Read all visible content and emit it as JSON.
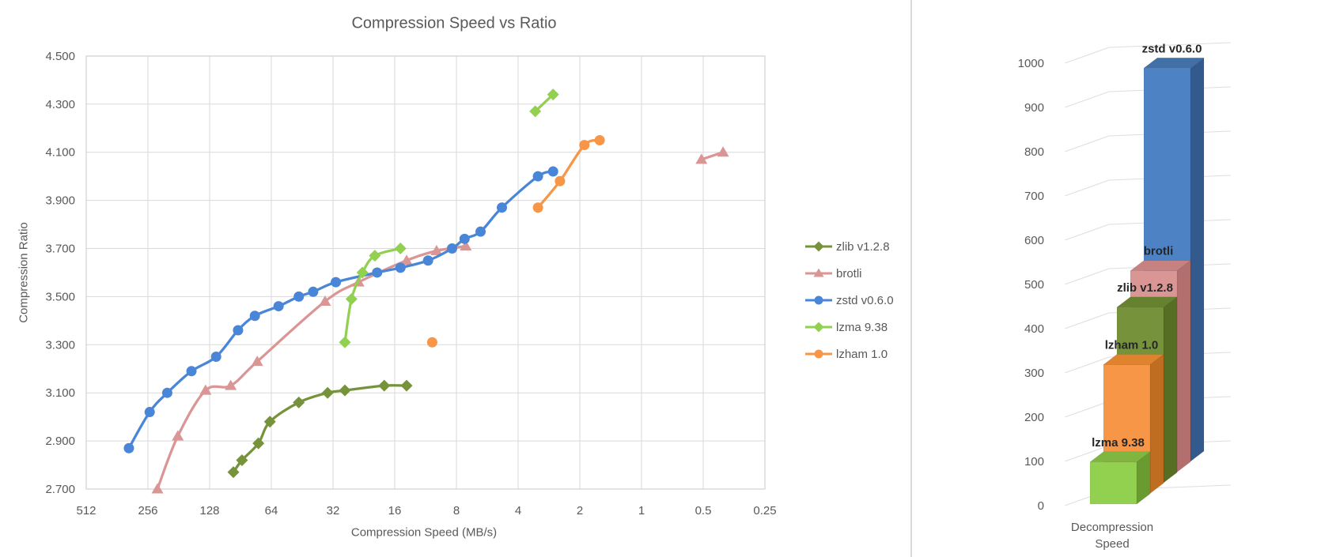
{
  "chart_data": [
    {
      "type": "line",
      "title": "Compression Speed vs Ratio",
      "xlabel": "Compression Speed (MB/s)",
      "ylabel": "Compression Ratio",
      "x_scale": "log2_reversed",
      "x_ticks": [
        512,
        256,
        128,
        64,
        32,
        16,
        8,
        4,
        2,
        1,
        0.5,
        0.25
      ],
      "y_ticks": [
        "2.700",
        "2.900",
        "3.100",
        "3.300",
        "3.500",
        "3.700",
        "3.900",
        "4.100",
        "4.300",
        "4.500"
      ],
      "ylim": [
        2.7,
        4.5
      ],
      "grid": true,
      "legend_position": "right",
      "series": [
        {
          "name": "zlib v1.2.8",
          "color": "#76933c",
          "marker": "diamond",
          "segments": [
            [
              [
                98,
                2.77
              ],
              [
                89,
                2.82
              ],
              [
                74,
                2.89
              ],
              [
                65,
                2.98
              ],
              [
                47,
                3.06
              ],
              [
                34,
                3.1
              ],
              [
                28,
                3.11
              ],
              [
                18,
                3.13
              ],
              [
                14,
                3.13
              ]
            ]
          ]
        },
        {
          "name": "brotli",
          "color": "#d99694",
          "marker": "triangle",
          "segments": [
            [
              [
                230,
                2.7
              ],
              [
                183,
                2.92
              ],
              [
                134,
                3.11
              ],
              [
                101,
                3.13
              ],
              [
                75,
                3.23
              ],
              [
                35,
                3.48
              ],
              [
                24,
                3.56
              ],
              [
                14,
                3.65
              ],
              [
                10,
                3.69
              ],
              [
                7.2,
                3.71
              ]
            ],
            [
              [
                0.51,
                4.07
              ],
              [
                0.4,
                4.1
              ]
            ]
          ]
        },
        {
          "name": "zstd v0.6.0",
          "color": "#4a86d8",
          "marker": "circle",
          "segments": [
            [
              [
                317,
                2.87
              ],
              [
                251,
                3.02
              ],
              [
                206,
                3.1
              ],
              [
                157,
                3.19
              ],
              [
                119,
                3.25
              ],
              [
                93,
                3.36
              ],
              [
                77,
                3.42
              ],
              [
                59,
                3.46
              ],
              [
                47,
                3.5
              ],
              [
                40,
                3.52
              ],
              [
                31,
                3.56
              ],
              [
                19.5,
                3.6
              ],
              [
                15,
                3.62
              ],
              [
                11,
                3.65
              ],
              [
                8.4,
                3.7
              ],
              [
                7.3,
                3.74
              ],
              [
                6.1,
                3.77
              ],
              [
                4.8,
                3.87
              ],
              [
                3.2,
                4.0
              ],
              [
                2.7,
                4.02
              ]
            ]
          ]
        },
        {
          "name": "lzma 9.38",
          "color": "#92d050",
          "marker": "diamond",
          "segments": [
            [
              [
                28,
                3.31
              ],
              [
                26,
                3.49
              ],
              [
                23,
                3.6
              ],
              [
                20,
                3.67
              ],
              [
                15,
                3.7
              ]
            ],
            [
              [
                3.3,
                4.27
              ],
              [
                2.7,
                4.34
              ]
            ]
          ]
        },
        {
          "name": "lzham 1.0",
          "color": "#f79646",
          "marker": "circle",
          "segments": [
            [
              [
                10.5,
                3.31
              ]
            ],
            [
              [
                3.2,
                3.87
              ],
              [
                2.5,
                3.98
              ],
              [
                1.9,
                4.13
              ],
              [
                1.6,
                4.15
              ]
            ]
          ]
        }
      ]
    },
    {
      "type": "bar",
      "style": "3d",
      "categories": [
        "Decompression Speed"
      ],
      "category_label_lines": [
        "Decompression",
        "Speed"
      ],
      "ylabel": "",
      "ylim": [
        0,
        1000
      ],
      "y_ticks": [
        0,
        100,
        200,
        300,
        400,
        500,
        600,
        700,
        800,
        900,
        1000
      ],
      "bars": [
        {
          "name": "lzma 9.38",
          "value": 95,
          "front": "#92d050",
          "top": "#7fb640",
          "side": "#699b31"
        },
        {
          "name": "lzham 1.0",
          "value": 300,
          "front": "#f79646",
          "top": "#e0832f",
          "side": "#bf6d21"
        },
        {
          "name": "zlib v1.2.8",
          "value": 422,
          "front": "#76933c",
          "top": "#66822f",
          "side": "#556e24"
        },
        {
          "name": "brotli",
          "value": 500,
          "front": "#d99694",
          "top": "#c68280",
          "side": "#b26f6d"
        },
        {
          "name": "zstd v0.6.0",
          "value": 1010,
          "front": "#4d82c4",
          "top": "#416fa8",
          "side": "#335a8c"
        }
      ]
    }
  ]
}
